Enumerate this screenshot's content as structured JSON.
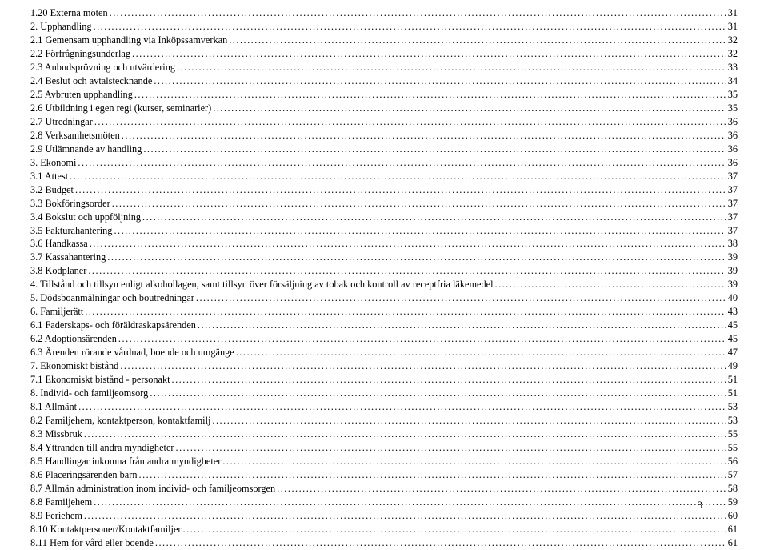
{
  "page_footer_num": "3",
  "font_family": "Times New Roman",
  "font_size_pt": 9,
  "text_color": "#000000",
  "background_color": "#ffffff",
  "dot_leader_char": ".",
  "entries": [
    {
      "title": "1.20 Externa möten",
      "page": "31",
      "indent": 0
    },
    {
      "title": "2. Upphandling",
      "page": "31",
      "indent": 0
    },
    {
      "title": "2.1 Gemensam upphandling via Inköpssamverkan",
      "page": "32",
      "indent": 0
    },
    {
      "title": "2.2 Förfrågningsunderlag",
      "page": "32",
      "indent": 0
    },
    {
      "title": "2.3 Anbudsprövning och utvärdering",
      "page": "33",
      "indent": 0
    },
    {
      "title": "2.4 Beslut och avtalstecknande",
      "page": "34",
      "indent": 0
    },
    {
      "title": "2.5 Avbruten upphandling",
      "page": "35",
      "indent": 0
    },
    {
      "title": "2.6 Utbildning i egen regi (kurser, seminarier)",
      "page": "35",
      "indent": 0
    },
    {
      "title": "2.7 Utredningar",
      "page": "36",
      "indent": 0
    },
    {
      "title": "2.8 Verksamhetsmöten",
      "page": "36",
      "indent": 0
    },
    {
      "title": "2.9 Utlämnande av handling",
      "page": "36",
      "indent": 0
    },
    {
      "title": "3. Ekonomi",
      "page": "36",
      "indent": 0
    },
    {
      "title": "3.1 Attest",
      "page": "37",
      "indent": 0
    },
    {
      "title": "3.2 Budget",
      "page": "37",
      "indent": 0
    },
    {
      "title": "3.3 Bokföringsorder",
      "page": "37",
      "indent": 0
    },
    {
      "title": "3.4 Bokslut och uppföljning",
      "page": "37",
      "indent": 0
    },
    {
      "title": "3.5 Fakturahantering",
      "page": "37",
      "indent": 0
    },
    {
      "title": "3.6 Handkassa",
      "page": "38",
      "indent": 0
    },
    {
      "title": "3.7 Kassahantering",
      "page": "39",
      "indent": 0
    },
    {
      "title": "3.8 Kodplaner",
      "page": "39",
      "indent": 0
    },
    {
      "title": "4. Tillstånd och tillsyn enligt alkohollagen, samt tillsyn över försäljning av tobak och kontroll av receptfria läkemedel",
      "page": "39",
      "indent": 0
    },
    {
      "title": "5. Dödsboanmälningar och boutredningar",
      "page": "40",
      "indent": 0
    },
    {
      "title": "6. Familjerätt",
      "page": "43",
      "indent": 0
    },
    {
      "title": "6.1 Faderskaps- och föräldraskapsärenden",
      "page": "45",
      "indent": 0
    },
    {
      "title": "6.2 Adoptionsärenden",
      "page": "45",
      "indent": 0
    },
    {
      "title": "6.3 Ärenden rörande vårdnad, boende och umgänge",
      "page": "47",
      "indent": 0
    },
    {
      "title": "7. Ekonomiskt bistånd",
      "page": "49",
      "indent": 0
    },
    {
      "title": "7.1 Ekonomiskt bistånd - personakt",
      "page": "51",
      "indent": 0
    },
    {
      "title": "8. Individ- och familjeomsorg",
      "page": "51",
      "indent": 0
    },
    {
      "title": "8.1 Allmänt",
      "page": "53",
      "indent": 0
    },
    {
      "title": "8.2 Familjehem, kontaktperson, kontaktfamilj",
      "page": "53",
      "indent": 0
    },
    {
      "title": "8.3 Missbruk",
      "page": "55",
      "indent": 0
    },
    {
      "title": "8.4 Yttranden till andra myndigheter",
      "page": "55",
      "indent": 0
    },
    {
      "title": "8.5 Handlingar inkomna från andra myndigheter",
      "page": "56",
      "indent": 0
    },
    {
      "title": "8.6 Placeringsärenden barn",
      "page": "57",
      "indent": 0
    },
    {
      "title": "8.7 Allmän administration inom individ- och familjeomsorgen",
      "page": "58",
      "indent": 0
    },
    {
      "title": "8.8 Familjehem",
      "page": "59",
      "indent": 0
    },
    {
      "title": "8.9 Feriehem",
      "page": "60",
      "indent": 0
    },
    {
      "title": "8.10 Kontaktpersoner/Kontaktfamiljer",
      "page": "61",
      "indent": 0
    },
    {
      "title": "8.11 Hem för vård eller boende",
      "page": "61",
      "indent": 0
    }
  ]
}
